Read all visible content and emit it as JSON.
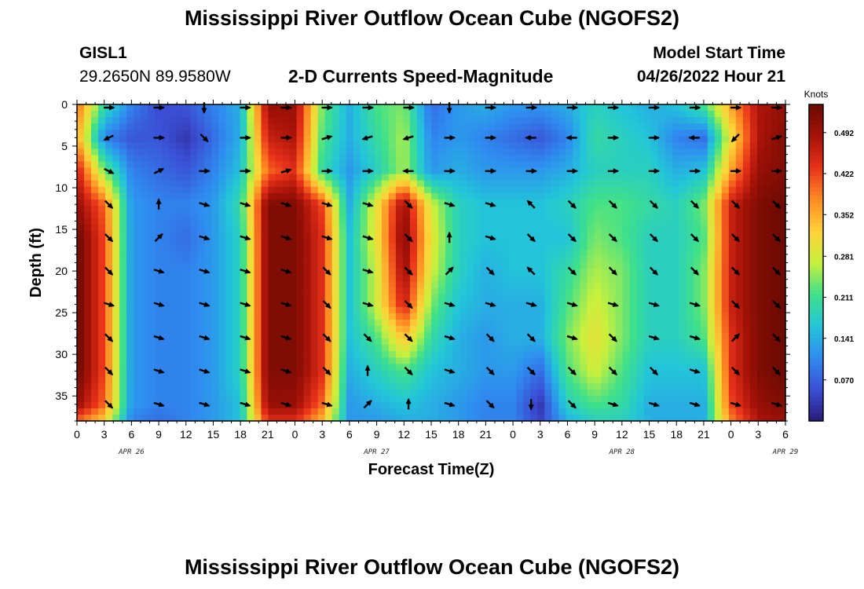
{
  "header": {
    "title": "Mississippi River Outflow Ocean Cube (NGOFS2)",
    "station": "GISL1",
    "coordinates": "29.2650N  89.9580W",
    "subtitle": "2-D Currents Speed-Magnitude",
    "model_start_label": "Model Start Time",
    "model_start_value": "04/26/2022 Hour 21"
  },
  "footer": {
    "title": "Mississippi River Outflow Ocean Cube (NGOFS2)"
  },
  "chart_data": {
    "type": "heatmap",
    "xlabel": "Forecast Time(Z)",
    "ylabel": "Depth (ft)",
    "x_tick_labels": [
      "0",
      "3",
      "6",
      "9",
      "12",
      "15",
      "18",
      "21",
      "0",
      "3",
      "6",
      "9",
      "12",
      "15",
      "18",
      "21",
      "0",
      "3",
      "6",
      "9",
      "12",
      "15",
      "18",
      "21",
      "0",
      "3",
      "6"
    ],
    "date_labels": [
      {
        "text": "APR 26",
        "at_tick": 4
      },
      {
        "text": "APR 27",
        "at_tick": 13
      },
      {
        "text": "APR 28",
        "at_tick": 22
      },
      {
        "text": "APR 29",
        "at_tick": 28
      }
    ],
    "y_ticks": [
      0,
      5,
      10,
      15,
      20,
      25,
      30,
      35
    ],
    "ylim": [
      0,
      38
    ],
    "y_inverted": true,
    "colorbar": {
      "unit": "Knots",
      "range": [
        0.0,
        0.54
      ],
      "tick_values": [
        0.07,
        0.141,
        0.211,
        0.281,
        0.352,
        0.422,
        0.492
      ],
      "tick_labels": [
        "0.070",
        "0.141",
        "0.211",
        "0.281",
        "0.352",
        "0.422",
        "0.492"
      ],
      "colormap": [
        "#2a1a7a",
        "#3b4fd6",
        "#2f8cf0",
        "#22c6d8",
        "#3fe08a",
        "#c8f03c",
        "#ffd238",
        "#ff8a22",
        "#e8321a",
        "#a61208",
        "#6a0a02"
      ]
    },
    "speed_field": {
      "note_units": "knots",
      "time_hours": [
        0,
        3,
        6,
        9,
        12,
        15,
        18,
        21,
        24,
        27,
        30,
        33,
        36,
        39,
        42,
        45,
        48,
        51,
        54,
        57,
        60,
        63,
        66,
        69,
        72,
        75,
        78
      ],
      "depth_ft": [
        0,
        4,
        8,
        12,
        16,
        20,
        24,
        28,
        32,
        36,
        38
      ],
      "values": [
        [
          0.4,
          0.2,
          0.1,
          0.05,
          0.06,
          0.1,
          0.14,
          0.5,
          0.5,
          0.24,
          0.14,
          0.22,
          0.24,
          0.08,
          0.12,
          0.14,
          0.12,
          0.12,
          0.14,
          0.18,
          0.16,
          0.14,
          0.16,
          0.22,
          0.36,
          0.48,
          0.5
        ],
        [
          0.36,
          0.1,
          0.06,
          0.06,
          0.03,
          0.08,
          0.14,
          0.46,
          0.48,
          0.22,
          0.14,
          0.2,
          0.26,
          0.1,
          0.12,
          0.1,
          0.08,
          0.06,
          0.1,
          0.2,
          0.18,
          0.16,
          0.1,
          0.08,
          0.3,
          0.48,
          0.52
        ],
        [
          0.46,
          0.24,
          0.1,
          0.08,
          0.06,
          0.1,
          0.16,
          0.4,
          0.44,
          0.2,
          0.12,
          0.18,
          0.26,
          0.12,
          0.14,
          0.12,
          0.12,
          0.12,
          0.14,
          0.18,
          0.18,
          0.18,
          0.14,
          0.16,
          0.36,
          0.5,
          0.52
        ],
        [
          0.5,
          0.4,
          0.12,
          0.1,
          0.1,
          0.12,
          0.2,
          0.52,
          0.52,
          0.42,
          0.14,
          0.3,
          0.5,
          0.28,
          0.18,
          0.16,
          0.16,
          0.16,
          0.18,
          0.22,
          0.22,
          0.2,
          0.18,
          0.24,
          0.46,
          0.52,
          0.54
        ],
        [
          0.54,
          0.42,
          0.12,
          0.1,
          0.08,
          0.12,
          0.18,
          0.52,
          0.52,
          0.44,
          0.16,
          0.3,
          0.52,
          0.3,
          0.18,
          0.16,
          0.16,
          0.16,
          0.16,
          0.24,
          0.22,
          0.18,
          0.18,
          0.22,
          0.46,
          0.52,
          0.54
        ],
        [
          0.54,
          0.42,
          0.12,
          0.1,
          0.1,
          0.12,
          0.18,
          0.52,
          0.52,
          0.44,
          0.16,
          0.28,
          0.5,
          0.28,
          0.18,
          0.14,
          0.16,
          0.16,
          0.2,
          0.26,
          0.24,
          0.18,
          0.18,
          0.24,
          0.46,
          0.52,
          0.54
        ],
        [
          0.54,
          0.42,
          0.12,
          0.1,
          0.1,
          0.12,
          0.18,
          0.52,
          0.52,
          0.44,
          0.16,
          0.28,
          0.46,
          0.24,
          0.16,
          0.14,
          0.14,
          0.14,
          0.22,
          0.28,
          0.24,
          0.18,
          0.18,
          0.24,
          0.46,
          0.52,
          0.54
        ],
        [
          0.54,
          0.42,
          0.12,
          0.1,
          0.1,
          0.12,
          0.18,
          0.52,
          0.52,
          0.44,
          0.16,
          0.22,
          0.34,
          0.2,
          0.14,
          0.12,
          0.14,
          0.14,
          0.24,
          0.3,
          0.24,
          0.18,
          0.18,
          0.22,
          0.44,
          0.52,
          0.54
        ],
        [
          0.54,
          0.42,
          0.12,
          0.1,
          0.1,
          0.12,
          0.18,
          0.52,
          0.52,
          0.44,
          0.14,
          0.18,
          0.22,
          0.16,
          0.14,
          0.12,
          0.12,
          0.08,
          0.22,
          0.28,
          0.22,
          0.16,
          0.16,
          0.16,
          0.44,
          0.52,
          0.54
        ],
        [
          0.5,
          0.4,
          0.12,
          0.1,
          0.1,
          0.12,
          0.16,
          0.5,
          0.5,
          0.4,
          0.12,
          0.14,
          0.16,
          0.14,
          0.12,
          0.1,
          0.1,
          0.03,
          0.18,
          0.22,
          0.2,
          0.14,
          0.14,
          0.14,
          0.42,
          0.5,
          0.52
        ],
        [
          0.4,
          0.32,
          0.1,
          0.08,
          0.1,
          0.12,
          0.16,
          0.44,
          0.44,
          0.34,
          0.12,
          0.12,
          0.14,
          0.14,
          0.12,
          0.1,
          0.1,
          0.04,
          0.14,
          0.18,
          0.18,
          0.14,
          0.14,
          0.14,
          0.38,
          0.48,
          0.5
        ]
      ]
    },
    "current_vectors": {
      "note": "unit direction vectors (east, north) of current arrows; depth rows at 0,4,8,12,16,20,24,28,32,36 ft; time columns at 3.5,9,14,18.5,23,27.5,32,36.5,41,45.5,50,54.5,59,63.5,68,72.5,77 h",
      "arrow_time_hours": [
        3.5,
        9,
        14,
        18.5,
        23,
        27.5,
        32,
        36.5,
        41,
        45.5,
        50,
        54.5,
        59,
        63.5,
        68,
        72.5,
        77
      ],
      "arrow_depth_ft": [
        0,
        4,
        8,
        12,
        16,
        20,
        24,
        28,
        32,
        36
      ],
      "directions": [
        [
          [
            1,
            0
          ],
          [
            1,
            0
          ],
          [
            0,
            -1
          ],
          [
            1,
            0
          ],
          [
            1,
            0
          ],
          [
            1,
            0
          ],
          [
            1,
            0
          ],
          [
            1,
            0
          ],
          [
            0,
            -1
          ],
          [
            1,
            0
          ],
          [
            1,
            0
          ],
          [
            1,
            0
          ],
          [
            1,
            0
          ],
          [
            1,
            0
          ],
          [
            1,
            0
          ],
          [
            1,
            0
          ],
          [
            1,
            0
          ]
        ],
        [
          [
            -1,
            -0.5
          ],
          [
            1,
            0
          ],
          [
            1,
            -1
          ],
          [
            1,
            0
          ],
          [
            1,
            0
          ],
          [
            1,
            0.3
          ],
          [
            -1,
            -0.3
          ],
          [
            -1,
            -0.3
          ],
          [
            1,
            0
          ],
          [
            1,
            0
          ],
          [
            -1,
            0
          ],
          [
            -1,
            0
          ],
          [
            1,
            0
          ],
          [
            1,
            0
          ],
          [
            -1,
            0
          ],
          [
            -1,
            -1
          ],
          [
            1,
            0.3
          ]
        ],
        [
          [
            1,
            -0.5
          ],
          [
            1,
            0.5
          ],
          [
            1,
            0
          ],
          [
            1,
            0
          ],
          [
            1,
            0.3
          ],
          [
            1,
            0
          ],
          [
            1,
            0
          ],
          [
            -1,
            0
          ],
          [
            1,
            0
          ],
          [
            1,
            0
          ],
          [
            1,
            0
          ],
          [
            1,
            0
          ],
          [
            1,
            0
          ],
          [
            1,
            0
          ],
          [
            1,
            0
          ],
          [
            1,
            0
          ],
          [
            1,
            0
          ]
        ],
        [
          [
            1,
            -1
          ],
          [
            0,
            1
          ],
          [
            1,
            -0.3
          ],
          [
            1,
            -0.3
          ],
          [
            1,
            -0.3
          ],
          [
            1,
            -0.3
          ],
          [
            1,
            -0.3
          ],
          [
            1,
            -1
          ],
          [
            1,
            -0.3
          ],
          [
            1,
            -0.3
          ],
          [
            -1,
            1
          ],
          [
            1,
            -1
          ],
          [
            1,
            -1
          ],
          [
            1,
            -1
          ],
          [
            1,
            -1
          ],
          [
            1,
            -1
          ],
          [
            1,
            -1
          ]
        ],
        [
          [
            1,
            -1
          ],
          [
            1,
            1
          ],
          [
            1,
            -0.3
          ],
          [
            1,
            -0.3
          ],
          [
            1,
            -0.3
          ],
          [
            1,
            -0.3
          ],
          [
            1,
            -0.3
          ],
          [
            1,
            -1
          ],
          [
            0,
            1
          ],
          [
            1,
            -0.3
          ],
          [
            1,
            -1
          ],
          [
            1,
            -1
          ],
          [
            1,
            -1
          ],
          [
            1,
            -1
          ],
          [
            1,
            -1
          ],
          [
            1,
            -1
          ],
          [
            1,
            -1
          ]
        ],
        [
          [
            1,
            -1
          ],
          [
            1,
            -0.3
          ],
          [
            1,
            -0.3
          ],
          [
            1,
            -0.3
          ],
          [
            1,
            -0.3
          ],
          [
            1,
            -1
          ],
          [
            1,
            -0.3
          ],
          [
            1,
            -1
          ],
          [
            1,
            1
          ],
          [
            1,
            -1
          ],
          [
            -1,
            1
          ],
          [
            1,
            -1
          ],
          [
            1,
            -1
          ],
          [
            1,
            -1
          ],
          [
            1,
            -1
          ],
          [
            1,
            -1
          ],
          [
            1,
            -1
          ]
        ],
        [
          [
            1,
            -0.3
          ],
          [
            1,
            -0.3
          ],
          [
            1,
            -0.3
          ],
          [
            1,
            -0.3
          ],
          [
            1,
            -0.3
          ],
          [
            1,
            -1
          ],
          [
            1,
            -0.3
          ],
          [
            1,
            -1
          ],
          [
            1,
            -0.3
          ],
          [
            1,
            -0.3
          ],
          [
            1,
            -0.3
          ],
          [
            1,
            -0.3
          ],
          [
            1,
            -0.3
          ],
          [
            1,
            -0.3
          ],
          [
            1,
            -0.3
          ],
          [
            1,
            -1
          ],
          [
            1,
            -1
          ]
        ],
        [
          [
            1,
            -1
          ],
          [
            1,
            -0.3
          ],
          [
            1,
            -0.3
          ],
          [
            1,
            -0.3
          ],
          [
            1,
            -0.3
          ],
          [
            1,
            -1
          ],
          [
            1,
            -1
          ],
          [
            1,
            -1
          ],
          [
            1,
            -0.3
          ],
          [
            1,
            -1
          ],
          [
            1,
            -1
          ],
          [
            1,
            -0.3
          ],
          [
            1,
            -1
          ],
          [
            1,
            -0.3
          ],
          [
            1,
            -0.3
          ],
          [
            1,
            1
          ],
          [
            1,
            -1
          ]
        ],
        [
          [
            1,
            -1
          ],
          [
            1,
            -0.3
          ],
          [
            1,
            -0.3
          ],
          [
            1,
            -0.3
          ],
          [
            1,
            -0.3
          ],
          [
            1,
            -1
          ],
          [
            0,
            1
          ],
          [
            1,
            -1
          ],
          [
            1,
            -0.3
          ],
          [
            1,
            -1
          ],
          [
            1,
            -1
          ],
          [
            1,
            -1
          ],
          [
            1,
            -1
          ],
          [
            1,
            -1
          ],
          [
            1,
            -0.3
          ],
          [
            1,
            -1
          ],
          [
            1,
            -1
          ]
        ],
        [
          [
            1,
            -1
          ],
          [
            1,
            -0.3
          ],
          [
            1,
            -0.3
          ],
          [
            1,
            -0.3
          ],
          [
            1,
            -0.3
          ],
          [
            1,
            -0.3
          ],
          [
            1,
            1
          ],
          [
            0,
            1
          ],
          [
            1,
            -0.3
          ],
          [
            1,
            -1
          ],
          [
            0,
            -1
          ],
          [
            1,
            -1
          ],
          [
            1,
            -0.3
          ],
          [
            1,
            -0.3
          ],
          [
            1,
            -0.3
          ],
          [
            1,
            -0.3
          ],
          [
            1,
            -0.3
          ]
        ]
      ]
    }
  }
}
